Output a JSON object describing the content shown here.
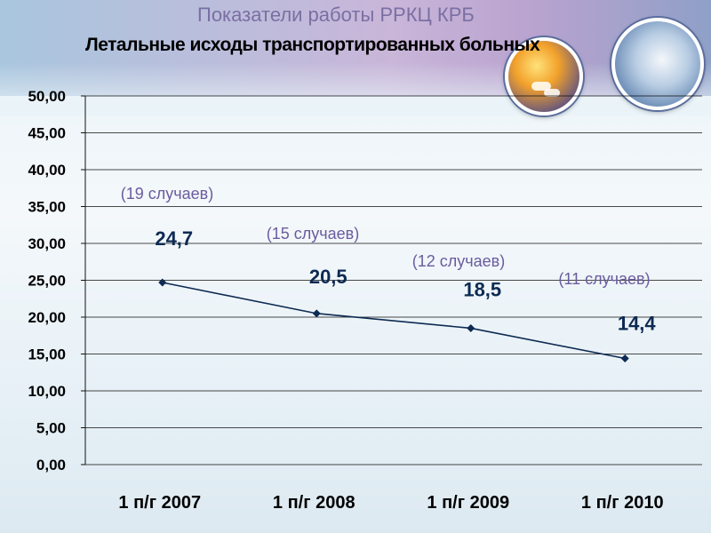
{
  "header": {
    "title": "Показатели работы РРКЦ КРБ",
    "subtitle": "Летальные исходы транспортированных больных"
  },
  "chart_data": {
    "type": "line",
    "title": "Летальные исходы транспортированных больных",
    "categories": [
      "1 п/г 2007",
      "1 п/г 2008",
      "1 п/г 2009",
      "1 п/г 2010"
    ],
    "values": [
      24.7,
      20.5,
      18.5,
      14.4
    ],
    "value_labels": [
      "24,7",
      "20,5",
      "18,5",
      "14,4"
    ],
    "annotations": [
      "(19 случаев)",
      "(15 случаев)",
      "(12 случаев)",
      "(11 случаев)"
    ],
    "ylim": [
      0,
      50
    ],
    "yticks": [
      "0,00",
      "5,00",
      "10,00",
      "15,00",
      "20,00",
      "25,00",
      "30,00",
      "35,00",
      "40,00",
      "45,00",
      "50,00"
    ],
    "grid": true,
    "line_color": "#0d2a52",
    "xlabel": "",
    "ylabel": ""
  }
}
